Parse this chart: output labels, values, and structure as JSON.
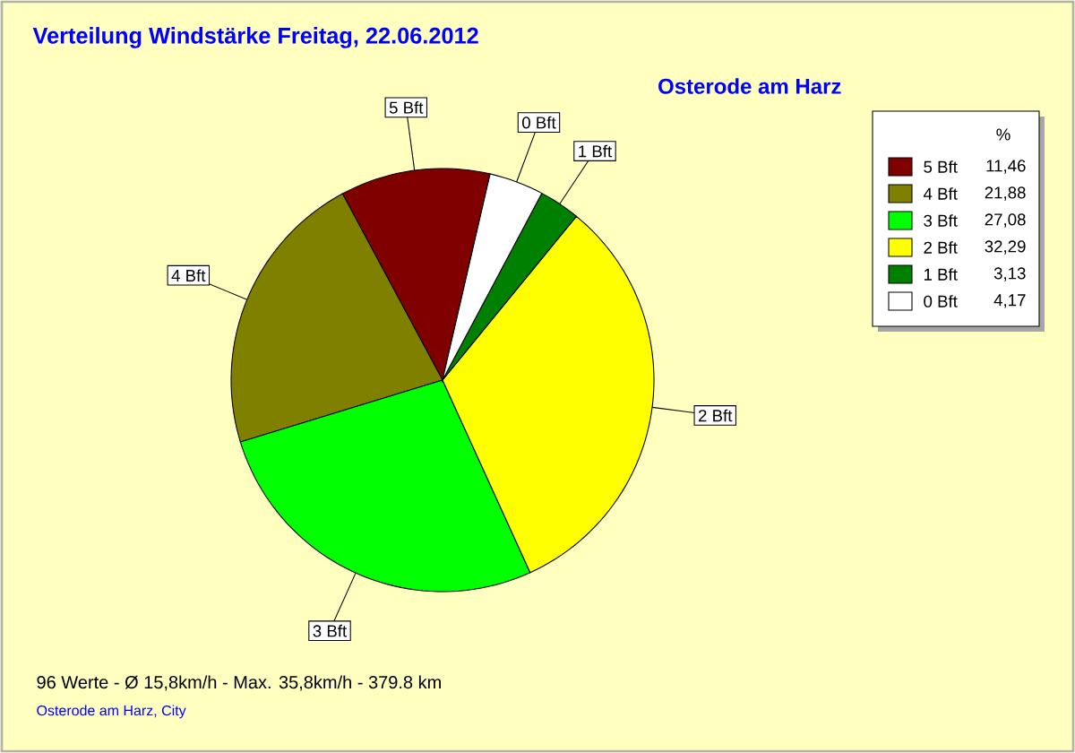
{
  "chart_data": {
    "type": "pie",
    "title": "Verteilung Windstärke  Freitag, 22.06.2012",
    "subtitle": "Osterode am Harz",
    "legend_title": "%",
    "categories": [
      "5 Bft",
      "4 Bft",
      "3 Bft",
      "2 Bft",
      "1 Bft",
      "0 Bft"
    ],
    "values": [
      11.46,
      21.88,
      27.08,
      32.29,
      3.13,
      4.17
    ],
    "value_labels": [
      "11,46",
      "21,88",
      "27,08",
      "32,29",
      "3,13",
      "4,17"
    ],
    "colors": [
      "#800000",
      "#808000",
      "#00ff00",
      "#ffff00",
      "#008000",
      "#ffffff"
    ],
    "legend": "top right",
    "annotations": [
      "96 Werte  -  Ø 15,8km/h  -  Max. 35,8km/h  -   379.8 km",
      "Osterode am Harz, City"
    ]
  }
}
